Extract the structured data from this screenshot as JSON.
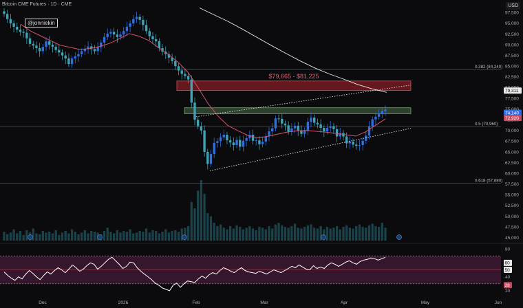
{
  "header": {
    "title": "Bitcoin CME Futures · 1D · CME",
    "currency": "USD",
    "watermark": "@jonniekin"
  },
  "colors": {
    "up": "#2f6de0",
    "down": "#3fa3b3",
    "sma": "#e9e9e9",
    "ema": "#d7546c",
    "resistance_zone": "#b1242e",
    "target_zone": "#4b6b48",
    "rsi": "#ffffff",
    "rsi_band": "#5a2147"
  },
  "chart_data": [
    {
      "type": "candlestick",
      "title": "",
      "x_ticks": [
        "Dec",
        "2026",
        "Feb",
        "Mar",
        "Apr",
        "May",
        "Jun"
      ],
      "y_ticks": [
        97500,
        95000,
        92500,
        90000,
        87500,
        85000,
        82500,
        80000,
        77500,
        75000,
        72500,
        70000,
        67500,
        65000,
        62500,
        60000,
        57500,
        55000,
        52500,
        50000,
        47500,
        45000
      ],
      "ylim": [
        44300,
        99800
      ],
      "price_labels": [
        {
          "value": 79311,
          "text": "79,311"
        },
        {
          "value": 74140,
          "text": "74,140"
        },
        {
          "value": 72920,
          "text": "72,920"
        }
      ],
      "fib_levels": [
        {
          "value": 84240,
          "label": "0.382 (84,240)"
        },
        {
          "value": 70960,
          "label": "0.5 (70,960)"
        },
        {
          "value": 57680,
          "label": "0.618 (57,680)"
        }
      ],
      "zones": [
        {
          "label": "$79,665 - $81,225",
          "from": 79665,
          "to": 81225
        },
        {
          "label": "",
          "from": 73900,
          "to": 75300
        }
      ],
      "ohlc_scale": "approximate daily candles Nov 20 – Apr 15",
      "series_close": [
        97200,
        96000,
        95000,
        94200,
        93500,
        93000,
        92800,
        91500,
        90200,
        89800,
        89200,
        88500,
        89500,
        90800,
        90000,
        89500,
        88800,
        88200,
        87500,
        86800,
        85500,
        86800,
        87300,
        87800,
        88500,
        89000,
        89600,
        89000,
        88500,
        89400,
        90500,
        91800,
        92600,
        93000,
        92400,
        91800,
        92400,
        93200,
        94200,
        95000,
        96000,
        96500,
        95800,
        94600,
        93200,
        92000,
        91300,
        90800,
        89200,
        88400,
        87800,
        87000,
        86200,
        85000,
        84000,
        83200,
        82700,
        81900,
        76500,
        72500,
        71000,
        70000,
        65000,
        62200,
        64500,
        67100,
        67500,
        68400,
        69000,
        67700,
        67200,
        66600,
        67800,
        66200,
        67600,
        68200,
        69000,
        67600,
        67700,
        66800,
        67400,
        68600,
        69800,
        70500,
        72800,
        72700,
        71600,
        71200,
        69700,
        70500,
        71100,
        70000,
        69200,
        70000,
        72000,
        73000,
        71800,
        71400,
        70600,
        69800,
        70600,
        71000,
        70300,
        68600,
        69400,
        68600,
        67000,
        67400,
        66700,
        66400,
        66600,
        67600,
        68800,
        71000,
        72600,
        73200,
        73800,
        74500,
        74900
      ],
      "sma": [
        98600,
        97000,
        95400,
        93600,
        91700,
        89800,
        88000,
        86200,
        84600,
        83200,
        82000,
        80700,
        79700,
        78900
      ],
      "ema": [
        94800,
        93200,
        92100,
        91000,
        89900,
        89400,
        88900,
        89100,
        89600,
        90300,
        91400,
        92600,
        92000,
        91000,
        89300,
        87700,
        85900,
        83500,
        80000,
        76300,
        73400,
        71200,
        70000,
        68900,
        68300,
        68600,
        69100,
        69600,
        69900,
        70000,
        69800,
        69600,
        69300,
        69000,
        68700,
        69700,
        71200,
        72700
      ],
      "volume": [
        11,
        8,
        10,
        14,
        9,
        12,
        7,
        13,
        10,
        15,
        9,
        8,
        12,
        10,
        11,
        9,
        13,
        7,
        10,
        12,
        9,
        14,
        11,
        8,
        10,
        13,
        9,
        12,
        11,
        10,
        8,
        12,
        16,
        11,
        9,
        13,
        10,
        12,
        11,
        14,
        9,
        10,
        12,
        11,
        15,
        10,
        13,
        12,
        9,
        11,
        14,
        10,
        12,
        13,
        11,
        15,
        16,
        18,
        48,
        40,
        62,
        75,
        58,
        34,
        30,
        22,
        18,
        20,
        16,
        14,
        18,
        15,
        19,
        17,
        14,
        16,
        18,
        15,
        13,
        17,
        16,
        14,
        18,
        15,
        20,
        22,
        19,
        17,
        16,
        18,
        21,
        16,
        15,
        17,
        19,
        20,
        16,
        15,
        18,
        14,
        17,
        15,
        16,
        18,
        14,
        17,
        19,
        16,
        15,
        18,
        20,
        17,
        16,
        19,
        21,
        18,
        17,
        22,
        16
      ]
    },
    {
      "type": "line",
      "title": "",
      "y_ticks": [
        80,
        60,
        50,
        40,
        20
      ],
      "ylim": [
        15,
        84
      ],
      "labels": [
        {
          "value": 60,
          "text": "60"
        },
        {
          "value": 50,
          "text": "50"
        },
        {
          "value": 28,
          "text": "28"
        }
      ],
      "rsi": [
        47,
        42,
        38,
        35,
        40,
        37,
        44,
        49,
        45,
        40,
        36,
        42,
        47,
        44,
        49,
        53,
        50,
        46,
        51,
        57,
        53,
        48,
        51,
        56,
        60,
        58,
        51,
        55,
        60,
        65,
        68,
        63,
        58,
        52,
        55,
        61,
        60,
        53,
        48,
        44,
        40,
        36,
        31,
        28,
        24,
        22,
        20,
        28,
        31,
        25,
        30,
        34,
        33,
        32,
        37,
        41,
        38,
        43,
        46,
        44,
        49,
        53,
        51,
        48,
        46,
        50,
        53,
        49,
        47,
        46,
        45,
        48,
        46,
        44,
        47,
        50,
        48,
        46,
        49,
        52,
        55,
        53,
        57,
        54,
        51,
        50,
        56,
        52,
        54,
        52,
        57,
        60,
        58,
        55,
        58,
        61,
        63,
        60,
        58,
        62,
        64,
        65,
        67,
        66,
        64,
        66,
        68
      ]
    }
  ]
}
